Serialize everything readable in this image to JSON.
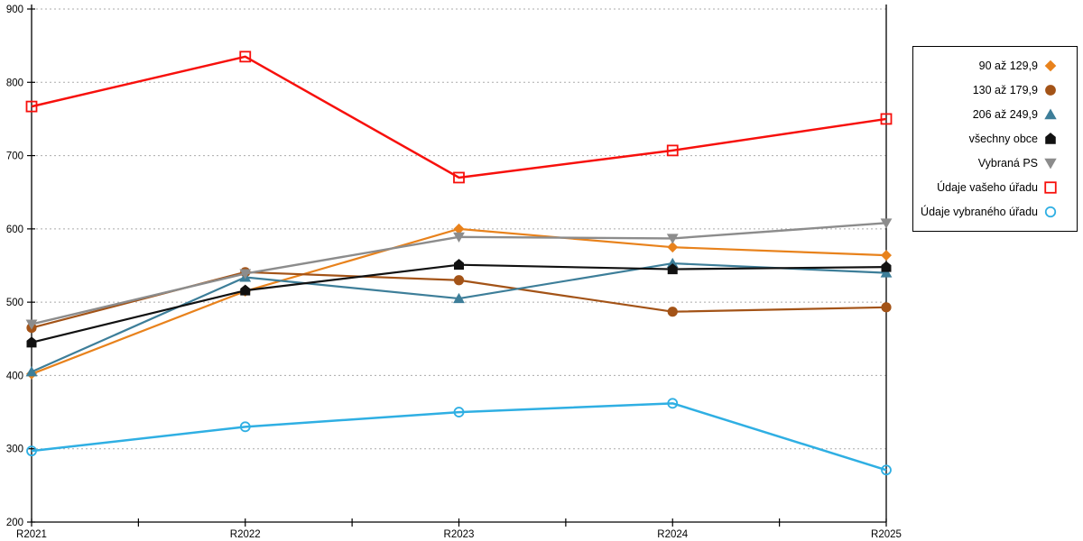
{
  "chart_data": {
    "type": "line",
    "title": "",
    "xlabel": "",
    "ylabel": "",
    "categories": [
      "R2021",
      "R2022",
      "R2023",
      "R2024",
      "R2025"
    ],
    "series": [
      {
        "name": "90 až 129,9",
        "marker": "diamond",
        "color": "#E8821C",
        "line_width": 2.2,
        "values": [
          402,
          515,
          600,
          575,
          564
        ]
      },
      {
        "name": "130 až 179,9",
        "marker": "circle",
        "color": "#A35317",
        "line_width": 2.2,
        "values": [
          465,
          541,
          530,
          487,
          493
        ]
      },
      {
        "name": "206 až 249,9",
        "marker": "triangle-up",
        "color": "#3D7E99",
        "line_width": 2.2,
        "values": [
          405,
          534,
          505,
          553,
          540
        ]
      },
      {
        "name": "všechny obce",
        "marker": "pentagon",
        "color": "#111111",
        "line_width": 2.2,
        "values": [
          445,
          516,
          551,
          545,
          548
        ]
      },
      {
        "name": "Vybraná PS",
        "marker": "triangle-down",
        "color": "#8C8C8C",
        "line_width": 2.4,
        "values": [
          470,
          539,
          589,
          587,
          608
        ]
      },
      {
        "name": "Údaje vašeho úřadu",
        "marker": "square-open",
        "color": "#F7100C",
        "line_width": 2.5,
        "values": [
          767,
          835,
          670,
          707,
          750
        ]
      },
      {
        "name": "Údaje vybraného úřadu",
        "marker": "circle-open",
        "color": "#2FAFE3",
        "line_width": 2.5,
        "values": [
          297,
          330,
          350,
          362,
          271
        ]
      }
    ],
    "ylim": [
      200,
      900
    ],
    "ytick_step": 100,
    "y_ticks": [
      "200",
      "300",
      "400",
      "500",
      "600",
      "700",
      "800",
      "900"
    ],
    "x_ticks": [
      "R2021",
      "R2022",
      "R2023",
      "R2024",
      "R2025"
    ],
    "grid": "horizontal-dotted",
    "legend_position": "right-box"
  },
  "colors": {
    "background": "#FFFFFF",
    "axis": "#000000",
    "grid": "#ABABAB",
    "legend_border": "#000000"
  }
}
